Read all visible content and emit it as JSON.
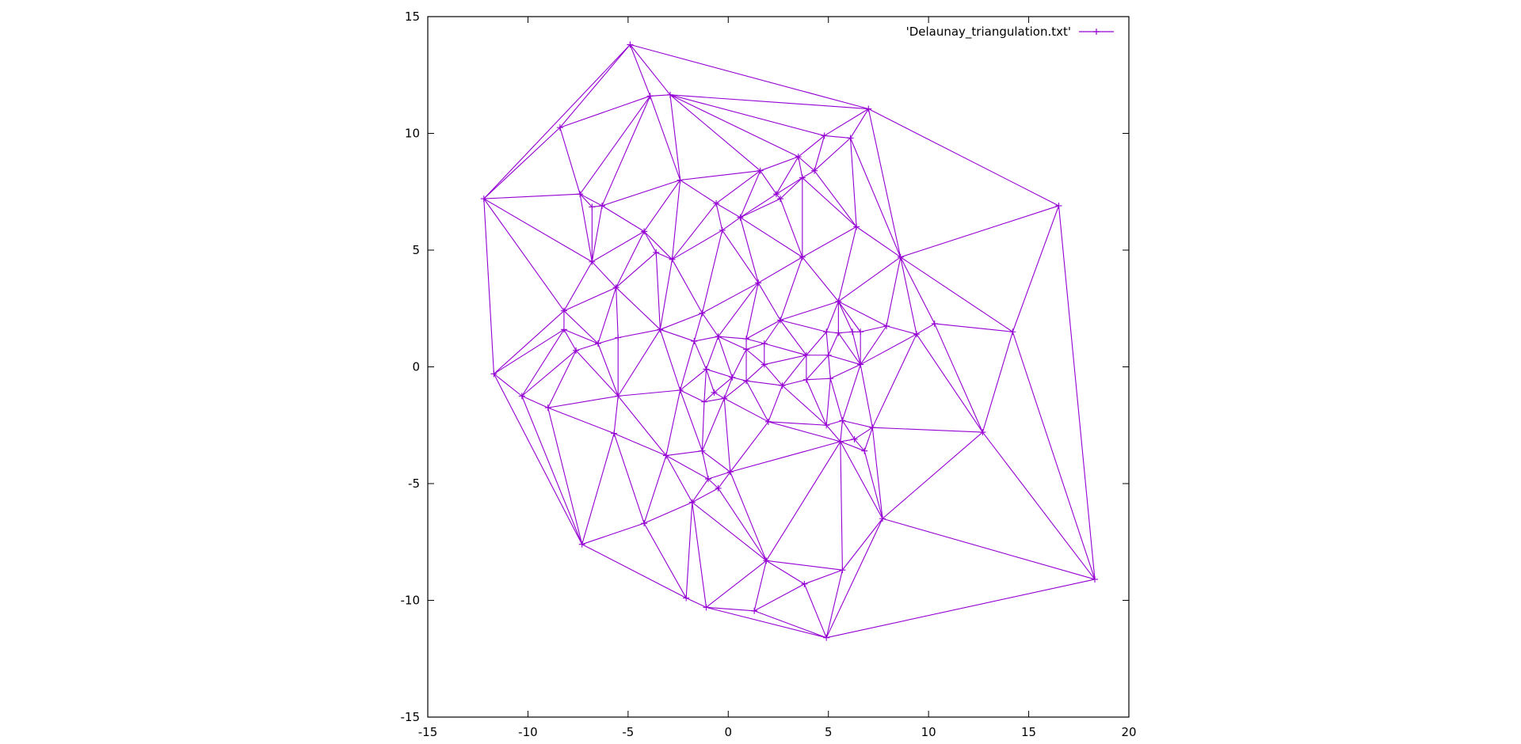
{
  "chart_data": {
    "type": "line",
    "title": "",
    "xlabel": "",
    "ylabel": "",
    "xlim": [
      -15,
      20
    ],
    "ylim": [
      -15,
      15
    ],
    "x_ticks": [
      -15,
      -10,
      -5,
      0,
      5,
      10,
      15,
      20
    ],
    "y_ticks": [
      -15,
      -10,
      -5,
      0,
      5,
      10,
      15
    ],
    "grid": false,
    "legend_position": "top-right",
    "color": "#9400d3",
    "series": [
      {
        "name": "'Delaunay_triangulation.txt'",
        "points": [
          [
            -12.2,
            7.2
          ],
          [
            -11.7,
            -0.3
          ],
          [
            -10.3,
            -1.25
          ],
          [
            -9.0,
            -1.75
          ],
          [
            -8.4,
            10.25
          ],
          [
            -8.2,
            2.4
          ],
          [
            -8.2,
            1.6
          ],
          [
            -7.6,
            0.7
          ],
          [
            -7.4,
            7.4
          ],
          [
            -7.3,
            -7.6
          ],
          [
            -6.8,
            6.85
          ],
          [
            -6.8,
            4.5
          ],
          [
            -6.5,
            1.0
          ],
          [
            -6.3,
            6.9
          ],
          [
            -5.7,
            -2.85
          ],
          [
            -5.6,
            3.4
          ],
          [
            -5.5,
            1.25
          ],
          [
            -5.5,
            -1.25
          ],
          [
            -4.9,
            13.8
          ],
          [
            -4.2,
            5.8
          ],
          [
            -4.2,
            -6.7
          ],
          [
            -3.9,
            11.6
          ],
          [
            -3.6,
            4.9
          ],
          [
            -3.4,
            1.6
          ],
          [
            -3.1,
            -3.8
          ],
          [
            -2.9,
            11.65
          ],
          [
            -2.8,
            4.6
          ],
          [
            -2.4,
            -1.0
          ],
          [
            -2.4,
            8.0
          ],
          [
            -2.1,
            -9.9
          ],
          [
            -1.8,
            -5.8
          ],
          [
            -1.7,
            1.1
          ],
          [
            -1.3,
            -3.6
          ],
          [
            -1.3,
            2.3
          ],
          [
            -1.2,
            -1.5
          ],
          [
            -1.1,
            -0.1
          ],
          [
            -1.0,
            -4.8
          ],
          [
            -1.1,
            -10.3
          ],
          [
            -0.7,
            -1.1
          ],
          [
            -0.5,
            1.3
          ],
          [
            -0.5,
            -5.2
          ],
          [
            -0.6,
            7.0
          ],
          [
            -0.3,
            5.85
          ],
          [
            -0.2,
            -1.35
          ],
          [
            0.1,
            -4.5
          ],
          [
            0.2,
            -0.45
          ],
          [
            0.6,
            6.4
          ],
          [
            0.9,
            -0.6
          ],
          [
            0.9,
            1.2
          ],
          [
            0.9,
            0.75
          ],
          [
            1.3,
            -10.45
          ],
          [
            1.5,
            3.6
          ],
          [
            1.6,
            8.4
          ],
          [
            1.8,
            1.0
          ],
          [
            1.8,
            0.1
          ],
          [
            1.9,
            -8.3
          ],
          [
            2.0,
            -2.35
          ],
          [
            2.4,
            7.4
          ],
          [
            2.6,
            7.2
          ],
          [
            2.6,
            2.0
          ],
          [
            2.7,
            -0.8
          ],
          [
            3.5,
            9.0
          ],
          [
            3.7,
            4.7
          ],
          [
            3.7,
            8.1
          ],
          [
            3.9,
            0.5
          ],
          [
            3.9,
            -0.55
          ],
          [
            3.8,
            -9.3
          ],
          [
            4.3,
            8.4
          ],
          [
            4.8,
            9.9
          ],
          [
            4.9,
            -11.6
          ],
          [
            4.9,
            1.5
          ],
          [
            4.9,
            -2.5
          ],
          [
            5.0,
            0.5
          ],
          [
            5.1,
            -0.5
          ],
          [
            5.5,
            2.8
          ],
          [
            5.5,
            1.45
          ],
          [
            5.6,
            -3.2
          ],
          [
            5.7,
            -2.3
          ],
          [
            5.7,
            -8.7
          ],
          [
            6.1,
            9.8
          ],
          [
            6.2,
            1.5
          ],
          [
            6.3,
            -3.1
          ],
          [
            6.4,
            6.0
          ],
          [
            6.6,
            1.5
          ],
          [
            6.6,
            0.1
          ],
          [
            6.8,
            -3.6
          ],
          [
            7.0,
            11.05
          ],
          [
            7.2,
            -2.6
          ],
          [
            7.7,
            -6.5
          ],
          [
            7.9,
            1.75
          ],
          [
            8.6,
            4.7
          ],
          [
            9.4,
            1.4
          ],
          [
            10.3,
            1.85
          ],
          [
            12.7,
            -2.8
          ],
          [
            14.2,
            1.5
          ],
          [
            16.5,
            6.9
          ],
          [
            18.3,
            -9.1
          ]
        ]
      }
    ]
  }
}
